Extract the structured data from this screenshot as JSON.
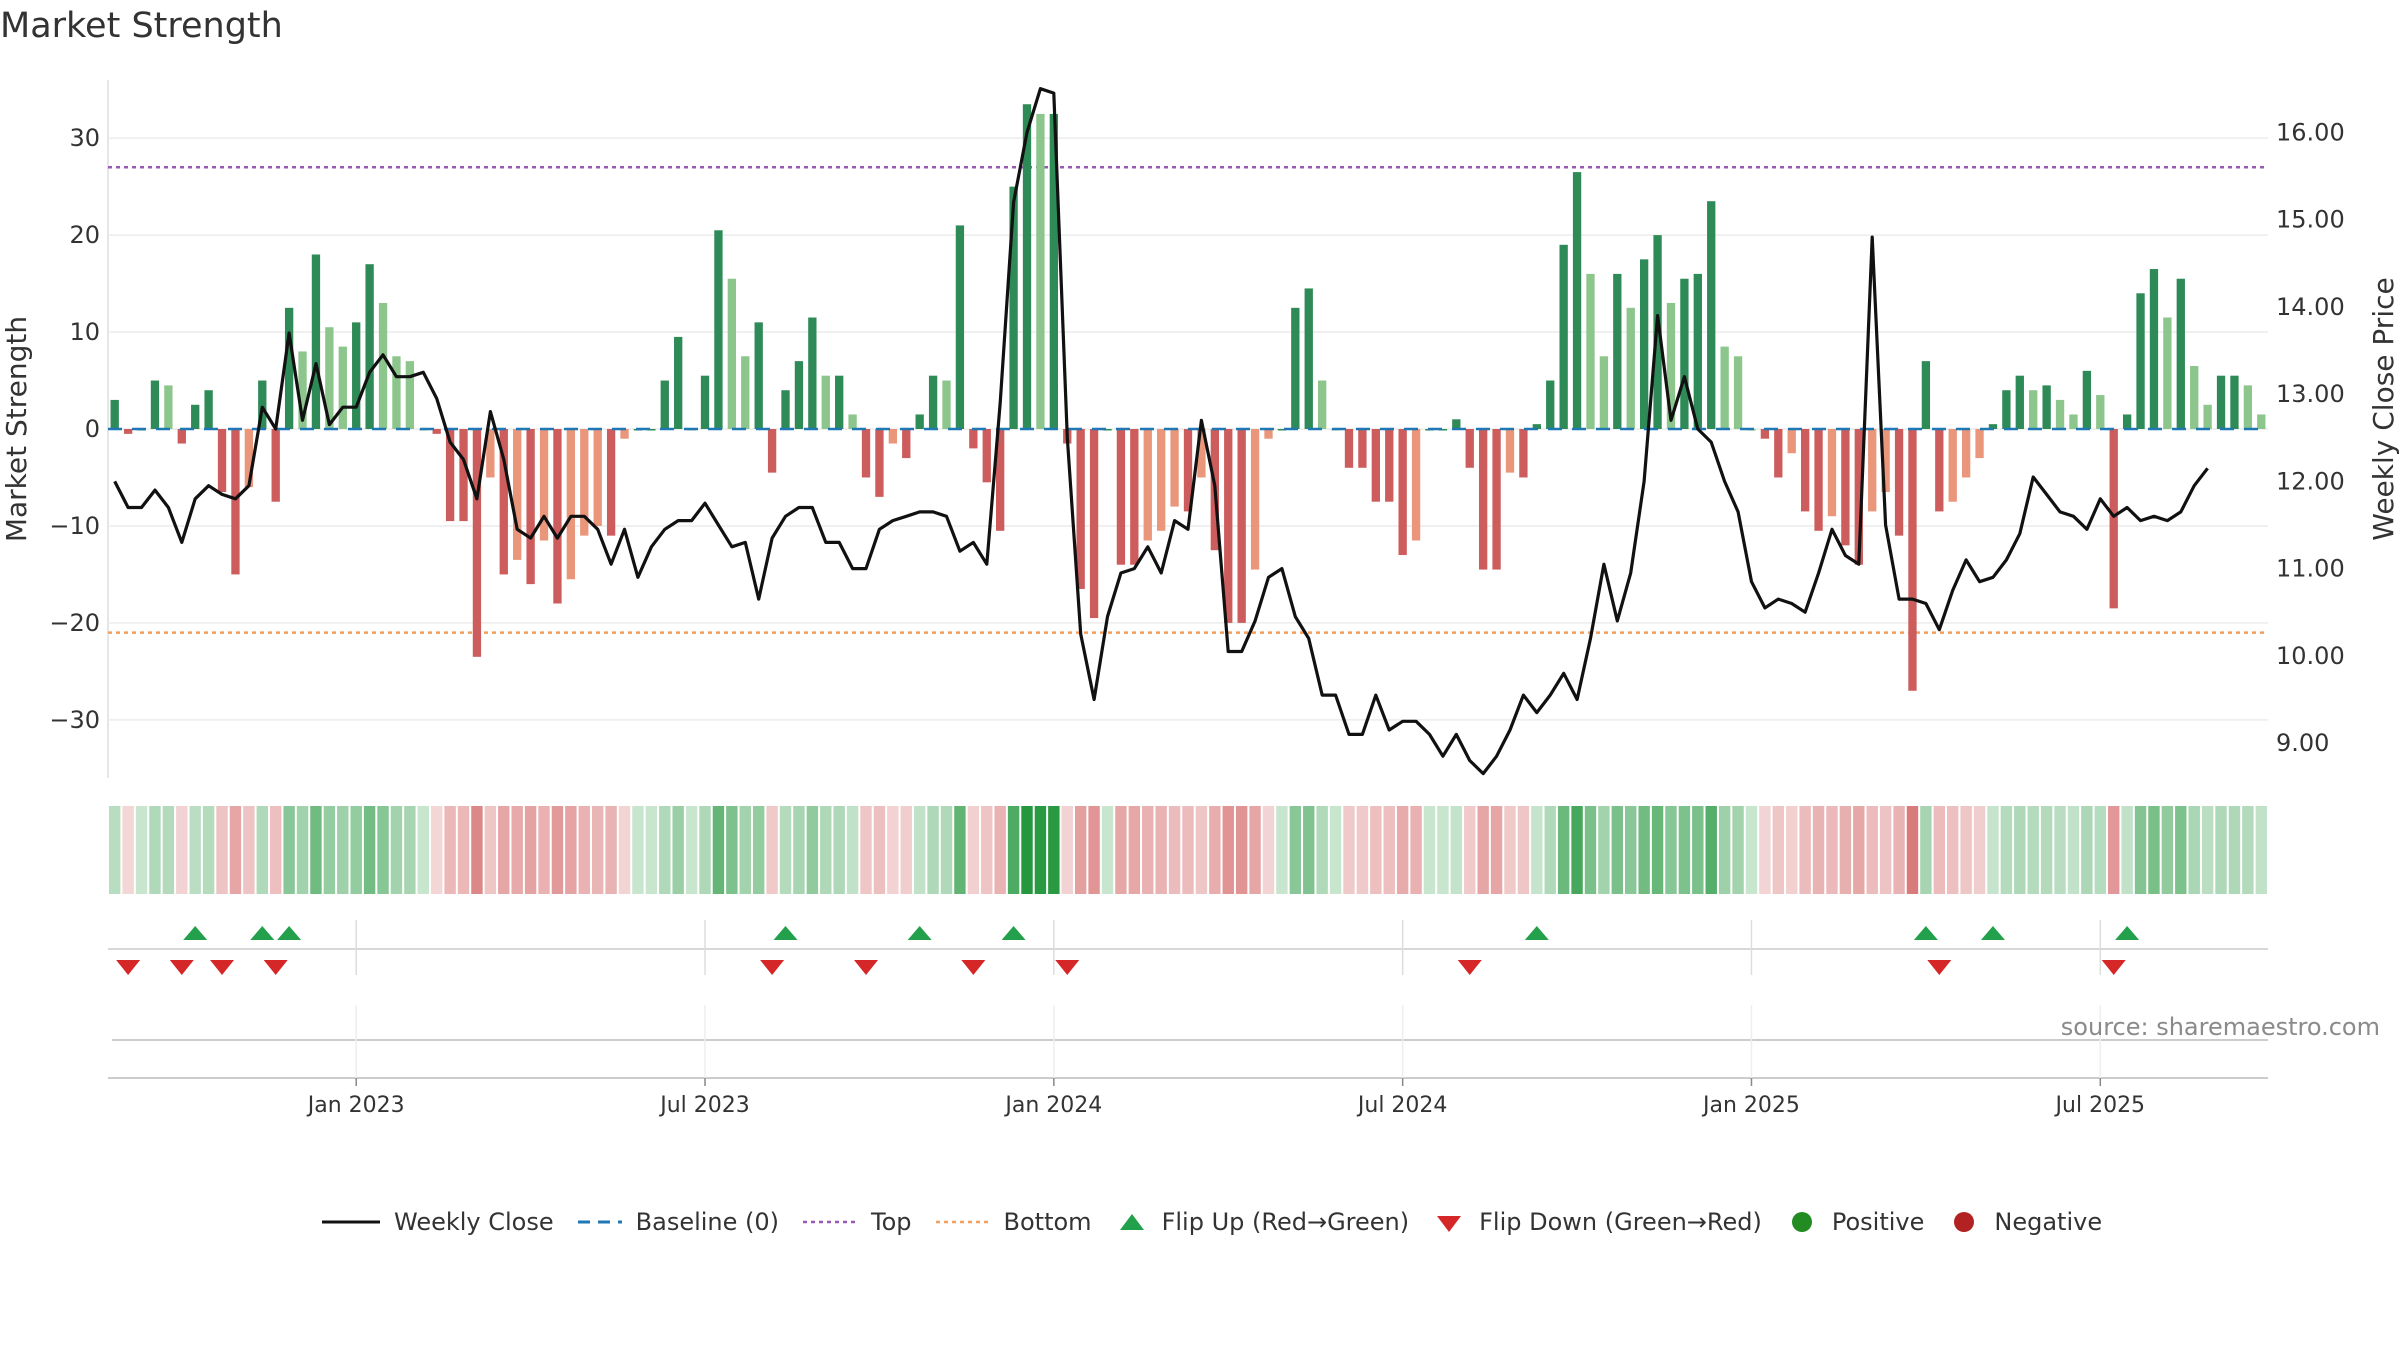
{
  "title": "Market Strength",
  "source": "source: sharemaestro.com",
  "chart_data": {
    "type": "bar",
    "title": "Market Strength",
    "ylabel_left": "Market Strength",
    "ylabel_right": "Weekly Close Price",
    "ylim_left": [
      -36,
      36
    ],
    "ylim_right": [
      8.6,
      16.6
    ],
    "yticks_left": [
      30,
      20,
      10,
      0,
      -10,
      -20,
      -30
    ],
    "ytick_labels_left": [
      "30",
      "20",
      "10",
      "0",
      "−10",
      "−20",
      "−30"
    ],
    "yticks_right": [
      16,
      15,
      14,
      13,
      12,
      11,
      10,
      9
    ],
    "ytick_labels_right": [
      "16.00",
      "15.00",
      "14.00",
      "13.00",
      "12.00",
      "11.00",
      "10.00",
      "9.00"
    ],
    "x_ticks": [
      {
        "label": "Jan 2023",
        "week": 18
      },
      {
        "label": "Jul 2023",
        "week": 44
      },
      {
        "label": "Jan 2024",
        "week": 70
      },
      {
        "label": "Jul 2024",
        "week": 96
      },
      {
        "label": "Jan 2025",
        "week": 122
      },
      {
        "label": "Jul 2025",
        "week": 148
      }
    ],
    "top_line": 27,
    "bottom_line": -21,
    "strength": [
      3,
      -0.5,
      0,
      5,
      4.5,
      -1.5,
      2.5,
      4,
      -6.5,
      -15,
      -6,
      5,
      -7.5,
      12.5,
      8,
      18,
      10.5,
      8.5,
      11,
      17,
      13,
      7.5,
      7,
      0,
      -0.5,
      -9.5,
      -9.5,
      -23.5,
      -5,
      -15,
      -13.5,
      -16,
      -11.5,
      -18,
      -15.5,
      -11,
      -10,
      -11,
      -1,
      0,
      0,
      5,
      9.5,
      0,
      5.5,
      20.5,
      15.5,
      7.5,
      11,
      -4.5,
      4,
      7,
      11.5,
      5.5,
      5.5,
      1.5,
      -5,
      -7,
      -1.5,
      -3,
      1.5,
      5.5,
      5,
      21,
      -2,
      -5.5,
      -10.5,
      25,
      33.5,
      32.5,
      32.5,
      -1.5,
      -16.5,
      -19.5,
      0,
      -14,
      -14,
      -11.5,
      -10.5,
      -8,
      -8.5,
      -5,
      -12.5,
      -20,
      -20,
      -14.5,
      -1,
      0,
      12.5,
      14.5,
      5,
      0,
      -4,
      -4,
      -7.5,
      -7.5,
      -13,
      -11.5,
      0,
      0,
      1,
      -4,
      -14.5,
      -14.5,
      -4.5,
      -5,
      0.5,
      5,
      19,
      26.5,
      16,
      7.5,
      16,
      12.5,
      17.5,
      20,
      13,
      15.5,
      16,
      23.5,
      8.5,
      7.5,
      0,
      -1,
      -5,
      -2.5,
      -8.5,
      -10.5,
      -9,
      -12,
      -14,
      -8.5,
      -6.5,
      -11,
      -27,
      7,
      -8.5,
      -7.5,
      -5,
      -3,
      0.5,
      4,
      5.5,
      4,
      4.5,
      3,
      1.5,
      6,
      3.5,
      -18.5,
      1.5,
      14,
      16.5,
      11.5,
      15.5,
      6.5,
      2.5,
      5.5,
      5.5,
      4.5,
      1.5
    ],
    "close": [
      12.0,
      11.7,
      11.7,
      11.9,
      11.7,
      11.3,
      11.8,
      11.95,
      11.85,
      11.8,
      11.95,
      12.85,
      12.6,
      13.7,
      12.7,
      13.35,
      12.65,
      12.85,
      12.85,
      13.25,
      13.45,
      13.2,
      13.2,
      13.25,
      12.95,
      12.45,
      12.25,
      11.8,
      12.8,
      12.25,
      11.45,
      11.35,
      11.6,
      11.35,
      11.6,
      11.6,
      11.45,
      11.05,
      11.45,
      10.9,
      11.25,
      11.45,
      11.55,
      11.55,
      11.75,
      11.5,
      11.25,
      11.3,
      10.65,
      11.35,
      11.6,
      11.7,
      11.7,
      11.3,
      11.3,
      11.0,
      11.0,
      11.45,
      11.55,
      11.6,
      11.65,
      11.65,
      11.6,
      11.2,
      11.3,
      11.05,
      12.9,
      15.2,
      16.0,
      16.5,
      16.45,
      12.5,
      10.25,
      9.5,
      10.45,
      10.95,
      11.0,
      11.25,
      10.95,
      11.55,
      11.45,
      12.7,
      11.95,
      10.05,
      10.05,
      10.4,
      10.9,
      11.0,
      10.45,
      10.2,
      9.55,
      9.55,
      9.1,
      9.1,
      9.55,
      9.15,
      9.25,
      9.25,
      9.1,
      8.85,
      9.1,
      8.8,
      8.65,
      8.85,
      9.15,
      9.55,
      9.35,
      9.55,
      9.8,
      9.5,
      10.2,
      11.05,
      10.4,
      10.95,
      12.0,
      13.9,
      12.7,
      13.2,
      12.6,
      12.45,
      12.0,
      11.65,
      10.85,
      10.55,
      10.65,
      10.6,
      10.5,
      10.95,
      11.45,
      11.15,
      11.05,
      14.8,
      11.5,
      10.65,
      10.65,
      10.6,
      10.3,
      10.75,
      11.1,
      10.85,
      10.9,
      11.1,
      11.4,
      12.05,
      11.85,
      11.65,
      11.6,
      11.45,
      11.8,
      11.6,
      11.7,
      11.55,
      11.6,
      11.55,
      11.65,
      11.95,
      12.15
    ]
  },
  "legend": [
    {
      "key": "weekly_close",
      "label": "Weekly Close"
    },
    {
      "key": "baseline",
      "label": "Baseline (0)"
    },
    {
      "key": "top",
      "label": "Top"
    },
    {
      "key": "bottom",
      "label": "Bottom"
    },
    {
      "key": "flip_up",
      "label": "Flip Up (Red→Green)"
    },
    {
      "key": "flip_down",
      "label": "Flip Down (Green→Red)"
    },
    {
      "key": "positive",
      "label": "Positive"
    },
    {
      "key": "negative",
      "label": "Negative"
    }
  ],
  "colors": {
    "pos_strong": "#2e8b57",
    "pos_light": "#8cc68c",
    "neg_strong": "#cd5c5c",
    "neg_light": "#e9967a",
    "close_line": "#111111",
    "baseline": "#1f77b4",
    "top": "#9b59b6",
    "bottom": "#f0a060",
    "flip_up": "#22a04b",
    "flip_down": "#d62728",
    "positive": "#228b22",
    "negative": "#b22222"
  }
}
